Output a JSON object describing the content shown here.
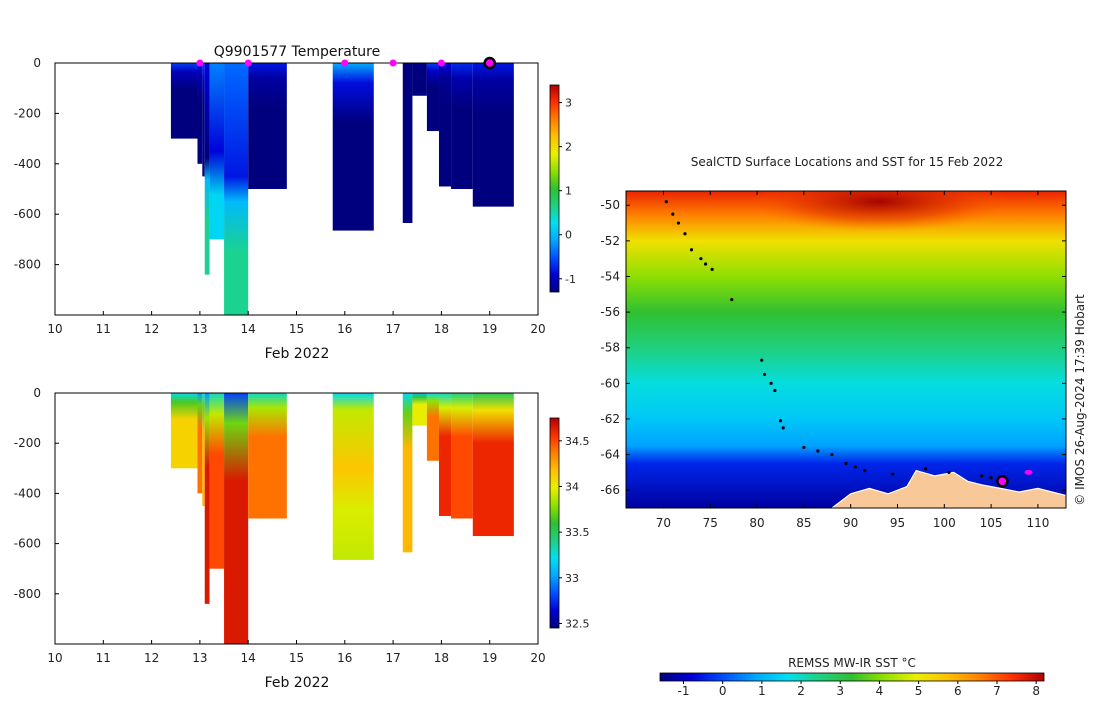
{
  "temperature_panel": {
    "title": "Q9901577  Temperature",
    "xlabel": "Feb 2022",
    "x_ticks": [
      "10",
      "11",
      "12",
      "13",
      "14",
      "15",
      "16",
      "17",
      "18",
      "19",
      "20"
    ],
    "y_ticks": [
      "0",
      "-200",
      "-400",
      "-600",
      "-800"
    ],
    "colorbar_ticks": [
      "3",
      "2",
      "1",
      "0",
      "-1"
    ]
  },
  "salinity_panel": {
    "xlabel": "Feb 2022",
    "x_ticks": [
      "10",
      "11",
      "12",
      "13",
      "14",
      "15",
      "16",
      "17",
      "18",
      "19",
      "20"
    ],
    "y_ticks": [
      "0",
      "-200",
      "-400",
      "-600",
      "-800"
    ],
    "colorbar_ticks": [
      "34.5",
      "34",
      "33.5",
      "33",
      "32.5"
    ]
  },
  "map_panel": {
    "title": "SealCTD Surface Locations and SST for 15 Feb 2022",
    "lon_ticks": [
      "70",
      "75",
      "80",
      "85",
      "90",
      "95",
      "100",
      "105",
      "110"
    ],
    "lat_ticks": [
      "-50",
      "-52",
      "-54",
      "-56",
      "-58",
      "-60",
      "-62",
      "-64",
      "-66"
    ],
    "colorbar_label": "REMSS MW-IR SST °C",
    "colorbar_ticks": [
      "-1",
      "0",
      "1",
      "2",
      "3",
      "4",
      "5",
      "6",
      "7",
      "8"
    ],
    "credit": "© IMOS 26-Aug-2024 17:39 Hobart"
  },
  "colors": {
    "colormap": [
      "#00007f",
      "#0000d8",
      "#0050ff",
      "#00a8ff",
      "#00e0f0",
      "#20d080",
      "#30c030",
      "#90e000",
      "#e8f000",
      "#ffc000",
      "#ff8000",
      "#ff3000",
      "#b00000"
    ],
    "land": "#f8c898",
    "marker_magenta": "#ff00ff"
  },
  "chart_data": [
    {
      "type": "heatmap",
      "title": "Q9901577  Temperature",
      "xlabel": "Feb 2022",
      "ylabel": "",
      "xlim": [
        10,
        20
      ],
      "ylim": [
        -1000,
        0
      ],
      "clim": [
        -1.3,
        3.4
      ],
      "profiles": [
        {
          "t0": 12.4,
          "t1": 12.95,
          "depth": 300,
          "surface": -0.6,
          "deep": -1.5
        },
        {
          "t0": 12.95,
          "t1": 13.05,
          "depth": 400,
          "surface": -0.8,
          "deep": -1.4
        },
        {
          "t0": 13.05,
          "t1": 13.1,
          "depth": 450,
          "surface": -0.6,
          "deep": -1.3
        },
        {
          "t0": 13.1,
          "t1": 13.2,
          "depth": 840,
          "surface": -0.9,
          "deep": 0.6,
          "profile": "temp_warm_deep"
        },
        {
          "t0": 13.2,
          "t1": 13.5,
          "depth": 700,
          "surface": -0.3,
          "deep": 0.2,
          "profile": "temp_mid"
        },
        {
          "t0": 13.5,
          "t1": 14.0,
          "depth": 1000,
          "surface": -0.4,
          "deep": 0.6,
          "profile": "temp_warm_deep"
        },
        {
          "t0": 14.0,
          "t1": 14.8,
          "depth": 500,
          "surface": -0.8,
          "deep": -1.5
        },
        {
          "t0": 15.75,
          "t1": 16.6,
          "depth": 665,
          "surface": -0.1,
          "deep": -1.6
        },
        {
          "t0": 17.2,
          "t1": 17.4,
          "depth": 635,
          "surface": -1.4,
          "deep": -1.5
        },
        {
          "t0": 17.4,
          "t1": 17.7,
          "depth": 130,
          "surface": -1.2,
          "deep": -1.4
        },
        {
          "t0": 17.7,
          "t1": 17.95,
          "depth": 270,
          "surface": -0.6,
          "deep": -1.4
        },
        {
          "t0": 17.95,
          "t1": 18.2,
          "depth": 490,
          "surface": -0.9,
          "deep": -1.5
        },
        {
          "t0": 18.2,
          "t1": 18.65,
          "depth": 500,
          "surface": -0.7,
          "deep": -1.5
        },
        {
          "t0": 18.65,
          "t1": 19.5,
          "depth": 570,
          "surface": -0.8,
          "deep": -1.5
        }
      ],
      "colorbar": {
        "min": -1.3,
        "max": 3.4,
        "ticks": [
          3,
          2,
          1,
          0,
          -1
        ]
      },
      "markers": [
        {
          "x": 13.0,
          "y": 0
        },
        {
          "x": 14.0,
          "y": 0
        },
        {
          "x": 16.0,
          "y": 0
        },
        {
          "x": 17.0,
          "y": 0
        },
        {
          "x": 18.0,
          "y": 0
        }
      ],
      "current_marker": {
        "x": 19.0,
        "y": 0
      }
    },
    {
      "type": "heatmap",
      "title": "",
      "xlabel": "Feb 2022",
      "ylabel": "",
      "xlim": [
        10,
        20
      ],
      "ylim": [
        -1000,
        0
      ],
      "clim": [
        32.45,
        34.75
      ],
      "profiles": [
        {
          "t0": 12.4,
          "t1": 12.95,
          "depth": 300,
          "surface": 33.2,
          "deep": 34.1
        },
        {
          "t0": 12.95,
          "t1": 13.05,
          "depth": 400,
          "surface": 33.0,
          "deep": 34.4
        },
        {
          "t0": 13.05,
          "t1": 13.1,
          "depth": 450,
          "surface": 33.2,
          "deep": 34.2
        },
        {
          "t0": 13.1,
          "t1": 13.2,
          "depth": 840,
          "surface": 33.0,
          "deep": 34.65
        },
        {
          "t0": 13.2,
          "t1": 13.5,
          "depth": 700,
          "surface": 33.3,
          "deep": 34.5
        },
        {
          "t0": 13.5,
          "t1": 14.0,
          "depth": 1000,
          "surface": 32.8,
          "deep": 34.65
        },
        {
          "t0": 14.0,
          "t1": 14.8,
          "depth": 500,
          "surface": 33.3,
          "deep": 34.4
        },
        {
          "t0": 15.75,
          "t1": 16.6,
          "depth": 665,
          "surface": 33.2,
          "deep": 34.1,
          "profile": "sal_mid_max"
        },
        {
          "t0": 17.2,
          "t1": 17.4,
          "depth": 635,
          "surface": 33.2,
          "deep": 34.2
        },
        {
          "t0": 17.4,
          "t1": 17.7,
          "depth": 130,
          "surface": 33.1,
          "deep": 34.0
        },
        {
          "t0": 17.7,
          "t1": 17.95,
          "depth": 270,
          "surface": 33.2,
          "deep": 34.4
        },
        {
          "t0": 17.95,
          "t1": 18.2,
          "depth": 490,
          "surface": 33.3,
          "deep": 34.6
        },
        {
          "t0": 18.2,
          "t1": 18.65,
          "depth": 500,
          "surface": 33.4,
          "deep": 34.5
        },
        {
          "t0": 18.65,
          "t1": 19.5,
          "depth": 570,
          "surface": 33.5,
          "deep": 34.6
        }
      ],
      "colorbar": {
        "min": 32.45,
        "max": 34.75,
        "ticks": [
          34.5,
          34,
          33.5,
          33,
          32.5
        ]
      }
    },
    {
      "type": "heatmap",
      "title": "SealCTD Surface Locations and SST for 15 Feb 2022",
      "xlabel": "",
      "ylabel": "",
      "xlim": [
        66,
        113
      ],
      "ylim": [
        -67,
        -49.2
      ],
      "colorbar": {
        "label": "REMSS MW-IR SST °C",
        "min": -1.6,
        "max": 8.2,
        "ticks": [
          -1,
          0,
          1,
          2,
          3,
          4,
          5,
          6,
          7,
          8
        ]
      },
      "sst_bands": [
        {
          "lat": -49.2,
          "sst": 7.6
        },
        {
          "lat": -50.5,
          "sst": 6.6
        },
        {
          "lat": -52,
          "sst": 5.2
        },
        {
          "lat": -54,
          "sst": 4.1
        },
        {
          "lat": -56,
          "sst": 3.3
        },
        {
          "lat": -58,
          "sst": 2.5
        },
        {
          "lat": -60,
          "sst": 1.8
        },
        {
          "lat": -62,
          "sst": 1.3
        },
        {
          "lat": -63.5,
          "sst": 0.8
        },
        {
          "lat": -64.5,
          "sst": -0.4
        },
        {
          "lat": -67,
          "sst": -1.3
        }
      ],
      "track": [
        {
          "lon": 70.3,
          "lat": -49.8
        },
        {
          "lon": 71.0,
          "lat": -50.5
        },
        {
          "lon": 71.6,
          "lat": -51.0
        },
        {
          "lon": 72.3,
          "lat": -51.6
        },
        {
          "lon": 73.0,
          "lat": -52.5
        },
        {
          "lon": 74.0,
          "lat": -53.0
        },
        {
          "lon": 74.5,
          "lat": -53.3
        },
        {
          "lon": 75.2,
          "lat": -53.6
        },
        {
          "lon": 77.3,
          "lat": -55.3
        },
        {
          "lon": 80.5,
          "lat": -58.7
        },
        {
          "lon": 80.8,
          "lat": -59.5
        },
        {
          "lon": 81.5,
          "lat": -60.0
        },
        {
          "lon": 81.9,
          "lat": -60.4
        },
        {
          "lon": 82.5,
          "lat": -62.1
        },
        {
          "lon": 82.8,
          "lat": -62.5
        },
        {
          "lon": 85.0,
          "lat": -63.6
        },
        {
          "lon": 86.5,
          "lat": -63.8
        },
        {
          "lon": 88.0,
          "lat": -64.0
        },
        {
          "lon": 89.5,
          "lat": -64.5
        },
        {
          "lon": 90.5,
          "lat": -64.7
        },
        {
          "lon": 91.5,
          "lat": -64.9
        },
        {
          "lon": 94.5,
          "lat": -65.1
        },
        {
          "lon": 98.0,
          "lat": -64.8
        },
        {
          "lon": 100.5,
          "lat": -65.0
        },
        {
          "lon": 104.0,
          "lat": -65.2
        },
        {
          "lon": 105.0,
          "lat": -65.3
        }
      ],
      "markers": [
        {
          "lon": 109.0,
          "lat": -65.0
        }
      ],
      "current_marker": {
        "lon": 106.2,
        "lat": -65.5
      }
    }
  ]
}
